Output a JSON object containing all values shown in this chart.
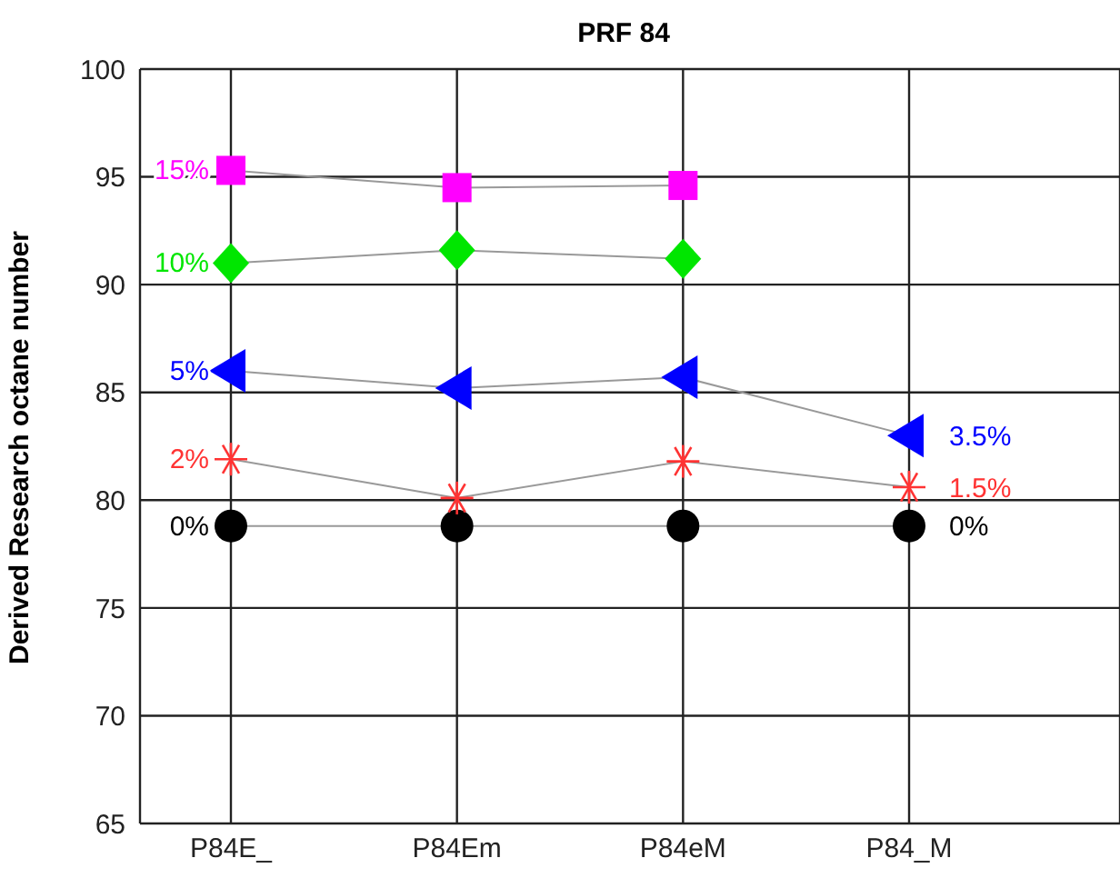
{
  "chart_data": {
    "type": "line",
    "title": "PRF 84",
    "ylabel": "Derived Research octane number",
    "categories": [
      "P84E_",
      "P84Em",
      "P84eM",
      "P84_M"
    ],
    "series": [
      {
        "name": "0%",
        "color": "#000000",
        "marker": "circle",
        "values": [
          78.8,
          78.8,
          78.8,
          78.8
        ]
      },
      {
        "name": "2%",
        "color": "#ff3333",
        "marker": "cross",
        "values": [
          81.9,
          80.1,
          81.8,
          80.6
        ]
      },
      {
        "name": "5%",
        "color": "#0000ff",
        "marker": "triangle",
        "values": [
          86.0,
          85.2,
          85.7,
          83.0
        ]
      },
      {
        "name": "10%",
        "color": "#00e600",
        "marker": "diamond",
        "values": [
          91.0,
          91.6,
          91.2,
          null
        ]
      },
      {
        "name": "15%",
        "color": "#ff00ff",
        "marker": "square",
        "values": [
          95.3,
          94.5,
          94.6,
          null
        ]
      }
    ],
    "annotations": [
      {
        "text": "3.5%",
        "x": "P84_M",
        "y": 83.0
      },
      {
        "text": "1.5%",
        "x": "P84_M",
        "y": 80.6
      },
      {
        "text": "0%",
        "x": "P84_M",
        "y": 78.8
      }
    ],
    "ylim": [
      65,
      100
    ],
    "yticks": [
      65,
      70,
      75,
      80,
      85,
      90,
      95,
      100
    ],
    "grid": true,
    "legend": false,
    "line_style": "solid"
  }
}
